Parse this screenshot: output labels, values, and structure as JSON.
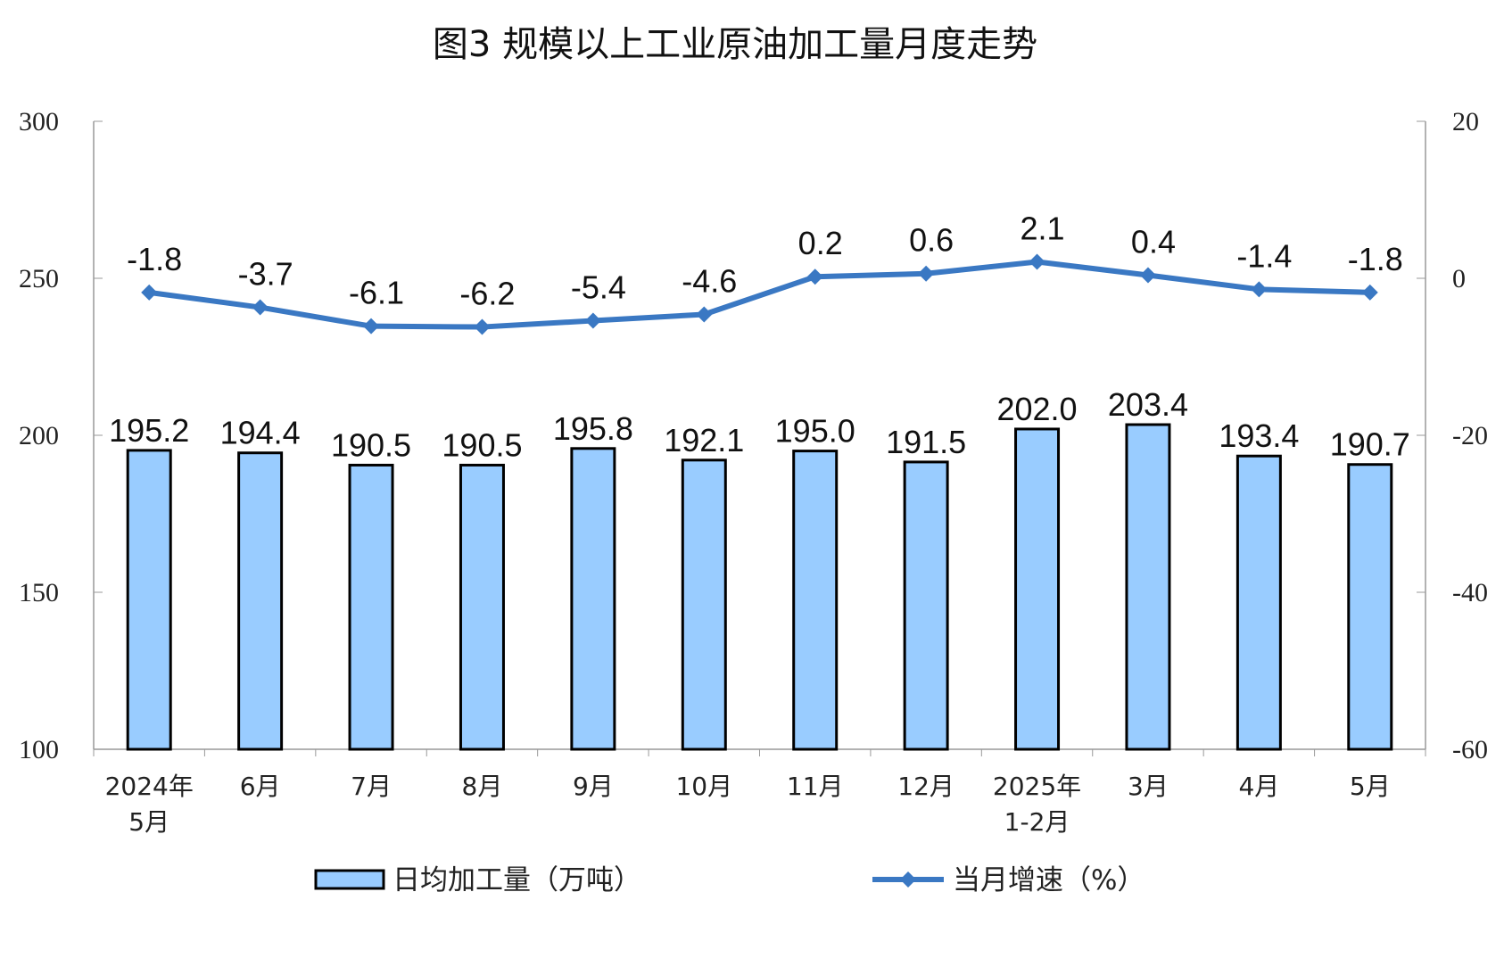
{
  "chart_data": {
    "type": "bar+line",
    "title": "图3  规模以上工业原油加工量月度走势",
    "categories": [
      [
        "2024年",
        "5月"
      ],
      [
        "6月"
      ],
      [
        "7月"
      ],
      [
        "8月"
      ],
      [
        "9月"
      ],
      [
        "10月"
      ],
      [
        "11月"
      ],
      [
        "12月"
      ],
      [
        "2025年",
        "1-2月"
      ],
      [
        "3月"
      ],
      [
        "4月"
      ],
      [
        "5月"
      ]
    ],
    "series": [
      {
        "name": "日均加工量（万吨）",
        "type": "bar",
        "axis": "left",
        "color": "#99CCFF",
        "values": [
          195.2,
          194.4,
          190.5,
          190.5,
          195.8,
          192.1,
          195.0,
          191.5,
          202.0,
          203.4,
          193.4,
          190.7
        ],
        "labels": [
          "195.2",
          "194.4",
          "190.5",
          "190.5",
          "195.8",
          "192.1",
          "195.0",
          "191.5",
          "202.0",
          "203.4",
          "193.4",
          "190.7"
        ]
      },
      {
        "name": "当月增速（%）",
        "type": "line",
        "axis": "right",
        "color": "#3A78C3",
        "values": [
          -1.8,
          -3.7,
          -6.1,
          -6.2,
          -5.4,
          -4.6,
          0.2,
          0.6,
          2.1,
          0.4,
          -1.4,
          -1.8
        ],
        "labels": [
          "-1.8",
          "-3.7",
          "-6.1",
          "-6.2",
          "-5.4",
          "-4.6",
          "0.2",
          "0.6",
          "2.1",
          "0.4",
          "-1.4",
          "-1.8"
        ]
      }
    ],
    "y_left": {
      "range": [
        100,
        300
      ],
      "ticks": [
        "100",
        "150",
        "200",
        "250",
        "300"
      ]
    },
    "y_right": {
      "range": [
        -60,
        20
      ],
      "ticks": [
        "-60",
        "-40",
        "-20",
        "0",
        "20"
      ]
    },
    "grid": false,
    "legend": "bottom"
  }
}
